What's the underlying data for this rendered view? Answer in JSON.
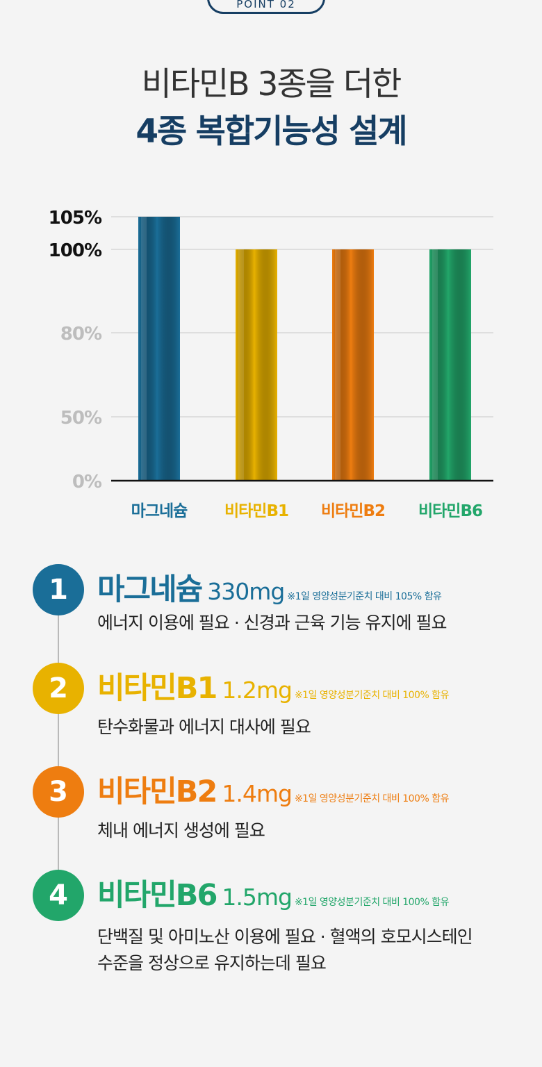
{
  "header": {
    "badge": "POINT 02",
    "title_line1": "비타민B 3종을 더한",
    "title_line2": "4종 복합기능성 설계"
  },
  "chart_data": {
    "type": "bar",
    "categories": [
      "마그네슘",
      "비타민B1",
      "비타민B2",
      "비타민B6"
    ],
    "values": [
      105,
      100,
      100,
      100
    ],
    "yticks": [
      0,
      50,
      80,
      100,
      105
    ],
    "ytick_labels": [
      "0%",
      "50%",
      "80%",
      "100%",
      "105%"
    ],
    "ylim": [
      0,
      105
    ],
    "grid": true,
    "colors": [
      "#1a6e98",
      "#e8b200",
      "#ee7d10",
      "#22a66a"
    ]
  },
  "items": [
    {
      "number": "1",
      "name": "마그네슘",
      "dose": "330mg",
      "note": "※1일 영양성분기준치 대비 105% 함유",
      "desc": [
        "에너지 이용에 필요 · 신경과 근육 기능 유지에 필요"
      ],
      "color": "#1a6e98"
    },
    {
      "number": "2",
      "name": "비타민B1",
      "dose": "1.2mg",
      "note": "※1일 영양성분기준치 대비 100% 함유",
      "desc": [
        "탄수화물과 에너지 대사에 필요"
      ],
      "color": "#e8b200"
    },
    {
      "number": "3",
      "name": "비타민B2",
      "dose": "1.4mg",
      "note": "※1일 영양성분기준치 대비 100% 함유",
      "desc": [
        "체내 에너지 생성에 필요"
      ],
      "color": "#ee7d10"
    },
    {
      "number": "4",
      "name": "비타민B6",
      "dose": "1.5mg",
      "note": "※1일 영양성분기준치 대비 100% 함유",
      "desc": [
        "단백질 및 아미노산 이용에 필요 · 혈액의 호모시스테인",
        "수준을 정상으로 유지하는데 필요"
      ],
      "color": "#22a66a"
    }
  ]
}
